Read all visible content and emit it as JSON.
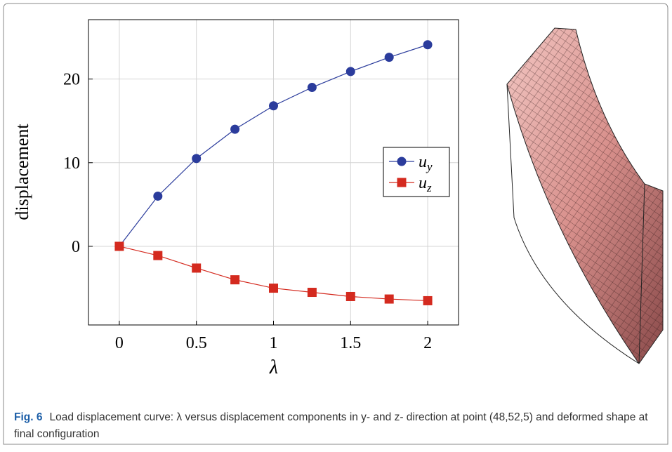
{
  "chart_data": {
    "type": "line",
    "x_label": "λ",
    "y_label": "displacement",
    "x": [
      0,
      0.25,
      0.5,
      0.75,
      1,
      1.25,
      1.5,
      1.75,
      2
    ],
    "series": [
      {
        "name": "uy",
        "color": "#2b3c9c",
        "marker": "circle",
        "values": [
          0,
          6.0,
          10.5,
          14.0,
          16.8,
          19.0,
          20.9,
          22.6,
          24.1
        ]
      },
      {
        "name": "uz",
        "color": "#d42a1f",
        "marker": "square",
        "values": [
          0,
          -1.1,
          -2.6,
          -4.0,
          -5.0,
          -5.5,
          -6.0,
          -6.3,
          -6.5
        ]
      }
    ],
    "xlim": [
      -0.2,
      2.2
    ],
    "ylim": [
      -9.4,
      27.1
    ],
    "xticks": [
      0,
      0.5,
      1,
      1.5,
      2
    ],
    "yticks": [
      0,
      10,
      20
    ],
    "grid": true,
    "legend": "right"
  },
  "caption": {
    "label": "Fig. 6",
    "text": "Load displacement curve: λ versus displacement components in y- and z- direction at point (48,52,5) and deformed shape at final configuration"
  }
}
